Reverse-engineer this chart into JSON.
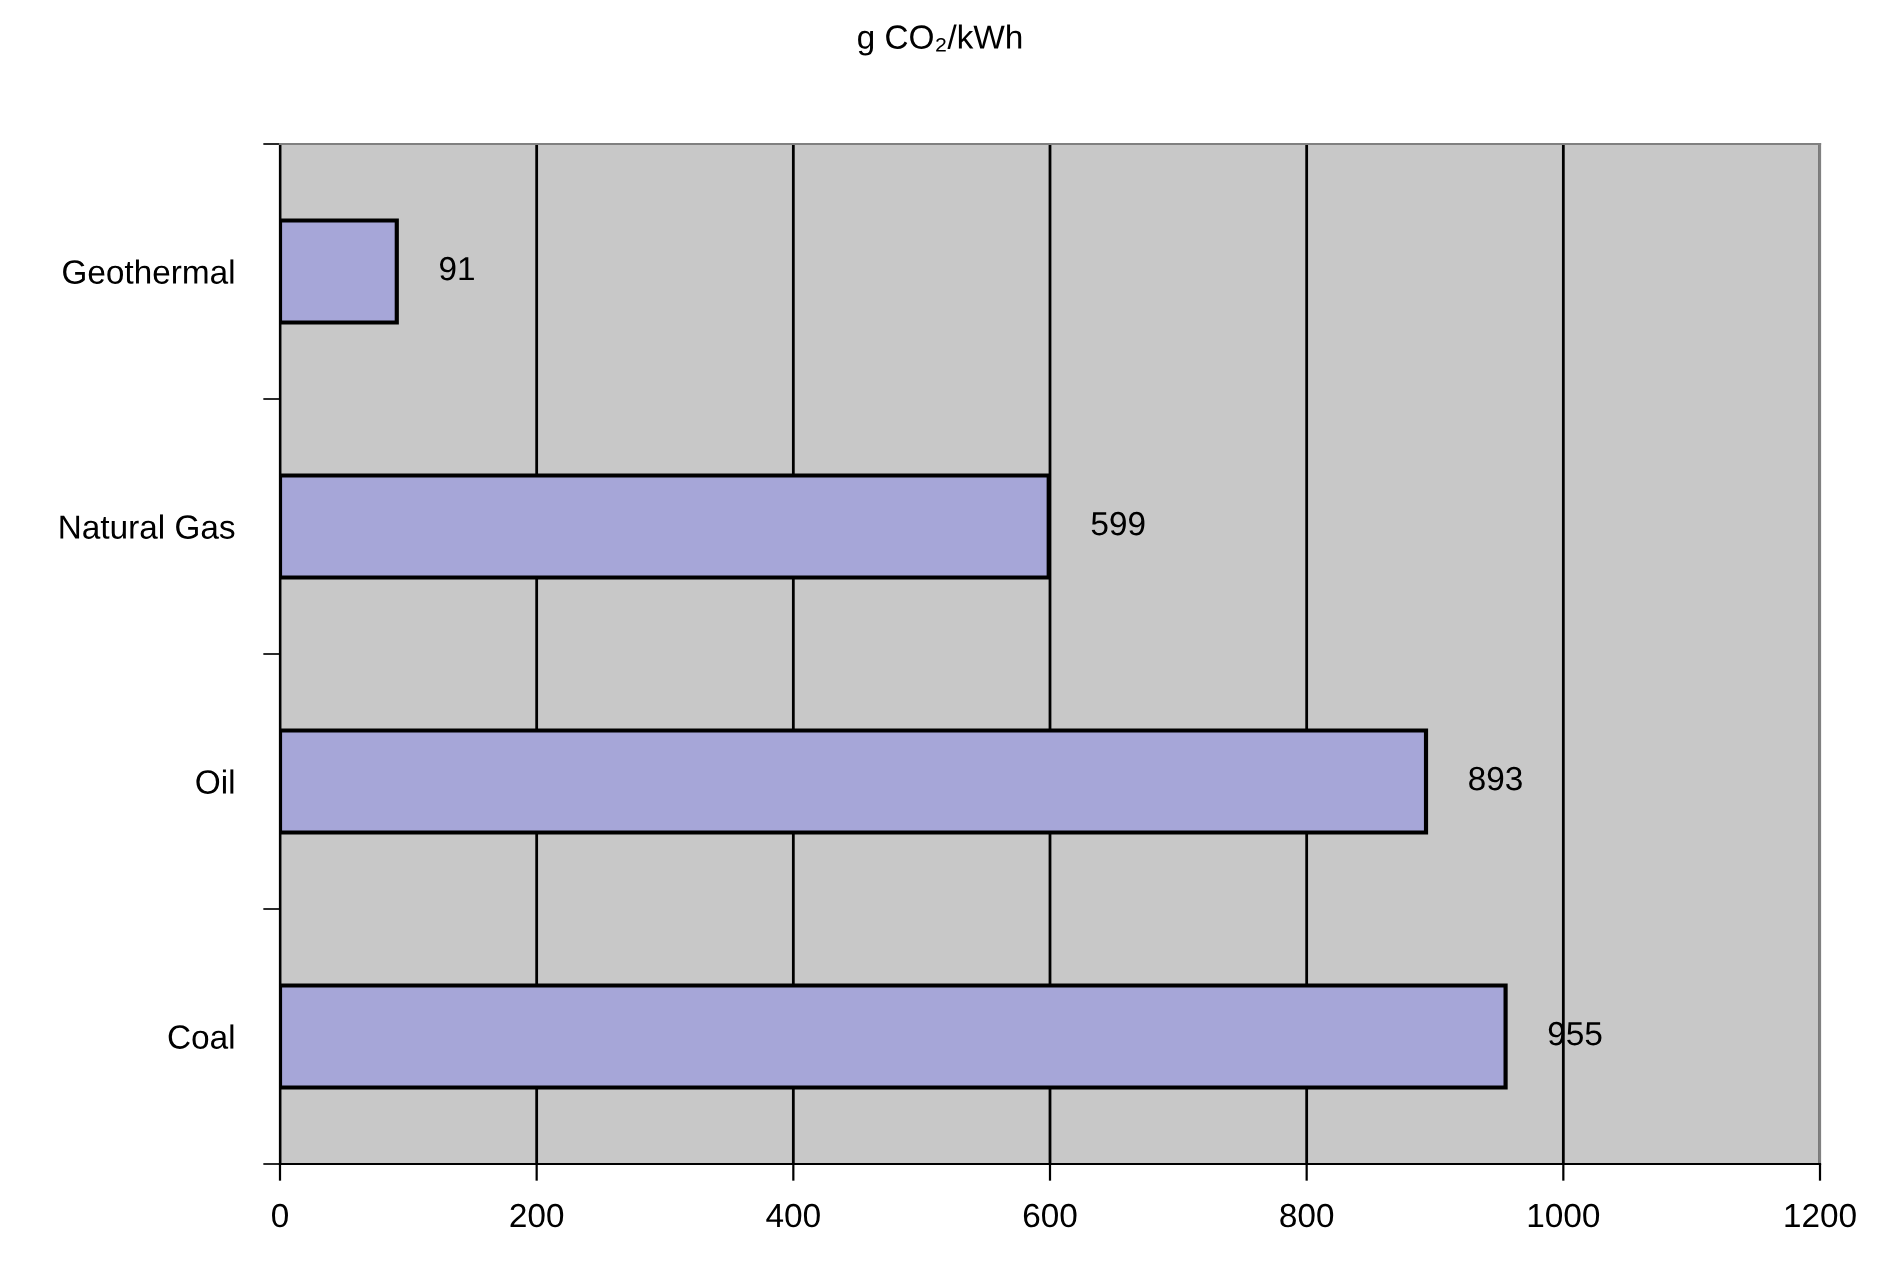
{
  "chart_data": {
    "type": "bar",
    "orientation": "horizontal",
    "title": "g CO₂/kWh",
    "categories": [
      "Geothermal",
      "Natural Gas",
      "Oil",
      "Coal"
    ],
    "values": [
      91,
      599,
      893,
      955
    ],
    "color": "#a6a6d8",
    "xlim": [
      0,
      1200
    ],
    "xticks": [
      0,
      200,
      400,
      600,
      800,
      1000,
      1200
    ],
    "grid": "x",
    "data_labels": true
  }
}
